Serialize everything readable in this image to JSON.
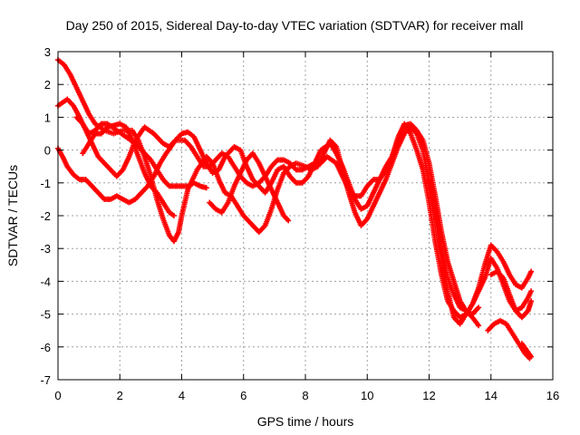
{
  "chart_data": {
    "type": "scatter",
    "title": "Day 250 of 2015, Sidereal Day-to-day VTEC variation (SDTVAR) for receiver mall",
    "xlabel": "GPS time / hours",
    "ylabel": "SDTVAR / TECUs",
    "xlim": [
      0,
      16
    ],
    "ylim": [
      -7,
      3
    ],
    "xticks": [
      "0",
      "2",
      "4",
      "6",
      "8",
      "10",
      "12",
      "14",
      "16"
    ],
    "yticks": [
      "3",
      "2",
      "1",
      "0",
      "-1",
      "-2",
      "-3",
      "-4",
      "-5",
      "-6",
      "-7"
    ],
    "grid": true,
    "legend": "none",
    "marker": "plus",
    "color": "#ff0000",
    "series": [
      {
        "points": [
          [
            0.0,
            2.75
          ],
          [
            0.2,
            2.6
          ],
          [
            0.4,
            2.3
          ],
          [
            0.6,
            1.9
          ],
          [
            0.8,
            1.5
          ],
          [
            1.0,
            1.1
          ],
          [
            1.2,
            0.8
          ],
          [
            1.5,
            0.6
          ],
          [
            1.8,
            0.5
          ],
          [
            2.1,
            0.6
          ],
          [
            2.4,
            0.6
          ],
          [
            2.6,
            0.3
          ],
          [
            2.8,
            -0.2
          ],
          [
            3.0,
            -0.8
          ],
          [
            3.2,
            -1.5
          ],
          [
            3.4,
            -2.1
          ],
          [
            3.6,
            -2.6
          ],
          [
            3.75,
            -2.78
          ],
          [
            3.9,
            -2.5
          ],
          [
            4.0,
            -2.0
          ],
          [
            4.2,
            -1.2
          ],
          [
            4.5,
            -0.6
          ],
          [
            4.8,
            -0.2
          ],
          [
            5.0,
            -0.4
          ],
          [
            5.2,
            -0.9
          ],
          [
            5.4,
            -1.3
          ],
          [
            5.6,
            -1.4
          ],
          [
            5.8,
            -1.7
          ],
          [
            6.0,
            -2.0
          ],
          [
            6.3,
            -2.3
          ],
          [
            6.5,
            -2.5
          ],
          [
            6.7,
            -2.3
          ],
          [
            6.9,
            -1.8
          ],
          [
            7.1,
            -1.2
          ],
          [
            7.3,
            -0.7
          ],
          [
            7.5,
            -0.5
          ],
          [
            7.7,
            -0.4
          ],
          [
            8.0,
            -0.5
          ],
          [
            8.2,
            -0.6
          ],
          [
            8.4,
            -0.5
          ],
          [
            8.6,
            -0.1
          ],
          [
            8.8,
            0.3
          ],
          [
            9.0,
            0.1
          ],
          [
            9.2,
            -0.6
          ],
          [
            9.4,
            -1.3
          ],
          [
            9.6,
            -1.9
          ],
          [
            9.8,
            -2.3
          ],
          [
            10.0,
            -2.1
          ],
          [
            10.2,
            -1.7
          ],
          [
            10.4,
            -1.3
          ],
          [
            10.6,
            -0.9
          ],
          [
            10.8,
            -0.4
          ],
          [
            11.0,
            0.1
          ],
          [
            11.2,
            0.5
          ],
          [
            11.4,
            0.7
          ],
          [
            11.6,
            0.5
          ],
          [
            11.8,
            0.0
          ],
          [
            12.0,
            -1.0
          ],
          [
            12.2,
            -2.0
          ],
          [
            12.4,
            -3.2
          ],
          [
            12.6,
            -4.3
          ],
          [
            12.8,
            -5.1
          ],
          [
            13.0,
            -5.3
          ],
          [
            13.2,
            -5.0
          ],
          [
            13.4,
            -4.7
          ],
          [
            13.6,
            -4.2
          ],
          [
            13.8,
            -3.5
          ],
          [
            14.0,
            -2.9
          ],
          [
            14.2,
            -3.1
          ],
          [
            14.4,
            -3.4
          ],
          [
            14.6,
            -3.8
          ],
          [
            14.8,
            -4.1
          ],
          [
            15.0,
            -4.2
          ],
          [
            15.2,
            -3.9
          ],
          [
            15.3,
            -3.7
          ]
        ]
      },
      {
        "points": [
          [
            0.0,
            1.35
          ],
          [
            0.15,
            1.45
          ],
          [
            0.3,
            1.55
          ],
          [
            0.5,
            1.35
          ],
          [
            0.7,
            1.0
          ],
          [
            0.9,
            0.6
          ],
          [
            1.1,
            0.2
          ],
          [
            1.3,
            -0.2
          ],
          [
            1.5,
            -0.4
          ],
          [
            1.7,
            -0.6
          ],
          [
            1.9,
            -0.8
          ],
          [
            2.1,
            -0.6
          ],
          [
            2.3,
            -0.2
          ],
          [
            2.5,
            0.3
          ],
          [
            2.8,
            0.7
          ],
          [
            3.1,
            0.5
          ],
          [
            3.4,
            0.2
          ],
          [
            3.6,
            0.1
          ],
          [
            3.8,
            0.3
          ],
          [
            4.0,
            0.5
          ],
          [
            4.2,
            0.55
          ],
          [
            4.4,
            0.4
          ],
          [
            4.6,
            0.0
          ],
          [
            4.8,
            -0.4
          ],
          [
            5.0,
            -0.7
          ],
          [
            5.2,
            -0.6
          ],
          [
            5.4,
            -0.2
          ],
          [
            5.7,
            0.1
          ],
          [
            5.9,
            0.0
          ],
          [
            6.1,
            -0.5
          ],
          [
            6.3,
            -0.9
          ],
          [
            6.5,
            -1.1
          ],
          [
            6.7,
            -1.3
          ],
          [
            6.9,
            -1.0
          ],
          [
            7.1,
            -0.6
          ],
          [
            7.3,
            -0.5
          ],
          [
            7.5,
            -0.8
          ],
          [
            7.7,
            -1.0
          ],
          [
            7.9,
            -1.0
          ],
          [
            8.1,
            -0.8
          ],
          [
            8.3,
            -0.4
          ],
          [
            8.5,
            0.0
          ],
          [
            8.8,
            0.2
          ],
          [
            9.0,
            -0.1
          ],
          [
            9.2,
            -0.5
          ],
          [
            9.4,
            -1.0
          ],
          [
            9.6,
            -1.5
          ],
          [
            9.8,
            -1.8
          ],
          [
            10.0,
            -1.7
          ],
          [
            10.2,
            -1.3
          ],
          [
            10.4,
            -0.9
          ],
          [
            10.6,
            -0.5
          ],
          [
            10.8,
            -0.2
          ],
          [
            11.0,
            0.3
          ],
          [
            11.2,
            0.75
          ],
          [
            11.4,
            0.8
          ],
          [
            11.6,
            0.6
          ],
          [
            11.8,
            0.3
          ],
          [
            12.0,
            -0.4
          ],
          [
            12.2,
            -1.4
          ],
          [
            12.4,
            -2.5
          ],
          [
            12.6,
            -3.4
          ],
          [
            12.8,
            -4.0
          ],
          [
            13.0,
            -4.6
          ],
          [
            13.2,
            -4.9
          ],
          [
            13.4,
            -5.0
          ],
          [
            13.6,
            -4.8
          ]
        ]
      },
      {
        "points": [
          [
            0.0,
            0.05
          ],
          [
            0.15,
            -0.2
          ],
          [
            0.3,
            -0.5
          ],
          [
            0.5,
            -0.75
          ],
          [
            0.7,
            -0.9
          ],
          [
            0.9,
            -0.9
          ],
          [
            1.1,
            -1.1
          ],
          [
            1.3,
            -1.3
          ],
          [
            1.5,
            -1.5
          ],
          [
            1.7,
            -1.5
          ],
          [
            1.9,
            -1.4
          ],
          [
            2.1,
            -1.5
          ],
          [
            2.3,
            -1.6
          ],
          [
            2.5,
            -1.5
          ],
          [
            2.7,
            -1.3
          ],
          [
            2.9,
            -1.1
          ],
          [
            3.1,
            -0.8
          ],
          [
            3.3,
            -0.4
          ],
          [
            3.5,
            -0.1
          ],
          [
            3.8,
            0.3
          ],
          [
            4.1,
            0.3
          ],
          [
            4.3,
            0.1
          ],
          [
            4.5,
            -0.2
          ],
          [
            4.7,
            -0.5
          ],
          [
            4.9,
            -0.5
          ],
          [
            5.1,
            -0.3
          ],
          [
            5.3,
            -0.1
          ],
          [
            5.5,
            -0.2
          ],
          [
            5.7,
            -0.5
          ],
          [
            5.9,
            -0.8
          ],
          [
            6.1,
            -1.0
          ],
          [
            6.3,
            -1.1
          ],
          [
            6.5,
            -1.0
          ],
          [
            6.7,
            -0.8
          ],
          [
            6.9,
            -0.5
          ],
          [
            7.1,
            -0.3
          ],
          [
            7.3,
            -0.3
          ],
          [
            7.5,
            -0.4
          ],
          [
            7.7,
            -0.6
          ],
          [
            7.9,
            -0.6
          ],
          [
            8.1,
            -0.5
          ],
          [
            8.3,
            -0.4
          ],
          [
            8.5,
            -0.4
          ],
          [
            8.7,
            -0.2
          ],
          [
            9.0,
            -0.4
          ],
          [
            9.2,
            -0.8
          ],
          [
            9.4,
            -1.2
          ],
          [
            9.6,
            -1.4
          ],
          [
            9.8,
            -1.4
          ],
          [
            10.0,
            -1.1
          ],
          [
            10.2,
            -0.9
          ],
          [
            10.4,
            -0.9
          ],
          [
            10.6,
            -0.6
          ],
          [
            10.8,
            -0.2
          ],
          [
            11.0,
            0.4
          ],
          [
            11.2,
            0.8
          ],
          [
            11.4,
            0.5
          ],
          [
            11.6,
            0.0
          ],
          [
            11.8,
            -0.6
          ],
          [
            12.0,
            -1.6
          ],
          [
            12.2,
            -2.8
          ],
          [
            12.4,
            -3.8
          ],
          [
            12.6,
            -4.6
          ],
          [
            12.8,
            -4.9
          ],
          [
            13.0,
            -5.1
          ],
          [
            13.2,
            -5.0
          ],
          [
            13.4,
            -4.7
          ],
          [
            13.6,
            -4.3
          ],
          [
            13.8,
            -3.9
          ],
          [
            14.0,
            -3.3
          ],
          [
            14.2,
            -3.6
          ],
          [
            14.4,
            -4.1
          ],
          [
            14.6,
            -4.6
          ],
          [
            14.8,
            -4.9
          ],
          [
            15.0,
            -4.8
          ],
          [
            15.2,
            -4.5
          ],
          [
            15.3,
            -4.3
          ]
        ]
      },
      {
        "points": [
          [
            0.6,
            1.0
          ],
          [
            0.8,
            0.8
          ],
          [
            1.0,
            0.5
          ],
          [
            1.2,
            0.6
          ],
          [
            1.4,
            0.8
          ],
          [
            1.6,
            0.8
          ],
          [
            1.9,
            0.6
          ],
          [
            2.2,
            0.4
          ],
          [
            2.5,
            0.2
          ],
          [
            2.8,
            -0.1
          ],
          [
            3.0,
            -0.3
          ],
          [
            3.2,
            -0.6
          ],
          [
            3.4,
            -0.9
          ],
          [
            3.6,
            -1.1
          ],
          [
            3.8,
            -1.1
          ],
          [
            4.0,
            -1.1
          ],
          [
            4.2,
            -1.1
          ],
          [
            4.4,
            -1.0
          ],
          [
            4.6,
            -1.1
          ],
          [
            4.8,
            -1.15
          ]
        ]
      },
      {
        "points": [
          [
            0.8,
            -0.1
          ],
          [
            1.0,
            0.2
          ],
          [
            1.2,
            0.5
          ],
          [
            1.4,
            0.5
          ],
          [
            1.6,
            0.7
          ],
          [
            1.8,
            0.75
          ],
          [
            2.0,
            0.8
          ],
          [
            2.2,
            0.7
          ],
          [
            2.4,
            0.3
          ],
          [
            2.6,
            -0.2
          ],
          [
            2.8,
            -0.7
          ],
          [
            3.0,
            -1.1
          ],
          [
            3.2,
            -1.3
          ],
          [
            3.4,
            -1.6
          ],
          [
            3.6,
            -1.9
          ],
          [
            3.75,
            -2.0
          ]
        ]
      },
      {
        "points": [
          [
            4.9,
            -1.6
          ],
          [
            5.1,
            -1.8
          ],
          [
            5.3,
            -1.9
          ],
          [
            5.5,
            -1.6
          ],
          [
            5.7,
            -1.1
          ],
          [
            5.9,
            -0.7
          ],
          [
            6.1,
            -0.3
          ],
          [
            6.3,
            -0.1
          ],
          [
            6.5,
            -0.4
          ],
          [
            6.7,
            -0.8
          ],
          [
            6.9,
            -1.2
          ],
          [
            7.1,
            -1.6
          ],
          [
            7.3,
            -2.0
          ],
          [
            7.45,
            -2.15
          ]
        ]
      },
      {
        "points": [
          [
            12.0,
            -0.9
          ],
          [
            12.2,
            -1.9
          ],
          [
            12.4,
            -3.0
          ],
          [
            12.6,
            -3.9
          ],
          [
            12.8,
            -4.4
          ],
          [
            13.0,
            -4.8
          ],
          [
            13.2,
            -4.9
          ],
          [
            13.4,
            -5.1
          ],
          [
            13.6,
            -5.35
          ]
        ]
      },
      {
        "points": [
          [
            13.9,
            -5.5
          ],
          [
            14.1,
            -5.3
          ],
          [
            14.3,
            -5.2
          ],
          [
            14.5,
            -5.3
          ],
          [
            14.7,
            -5.6
          ],
          [
            14.9,
            -5.9
          ],
          [
            15.1,
            -6.2
          ],
          [
            15.25,
            -6.35
          ]
        ]
      },
      {
        "points": [
          [
            14.0,
            -3.8
          ],
          [
            14.2,
            -3.7
          ],
          [
            14.4,
            -3.9
          ],
          [
            14.6,
            -4.4
          ],
          [
            14.8,
            -4.9
          ],
          [
            15.0,
            -5.1
          ],
          [
            15.2,
            -4.9
          ],
          [
            15.3,
            -4.6
          ]
        ]
      },
      {
        "points": [
          [
            15.0,
            -5.9
          ],
          [
            15.15,
            -6.1
          ],
          [
            15.3,
            -6.3
          ]
        ]
      }
    ]
  }
}
